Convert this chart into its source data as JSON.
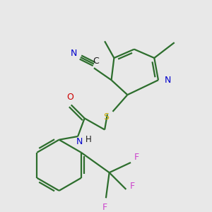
{
  "background_color": "#e8e8e8",
  "bond_color": "#2d6e2d",
  "bond_color_dark": "#1a1a1a",
  "atom_colors": {
    "N": "#0000cc",
    "O": "#cc0000",
    "S": "#ccaa00",
    "F": "#cc44cc",
    "C": "#1a1a1a",
    "H": "#1a1a1a"
  },
  "figsize": [
    3.0,
    3.0
  ],
  "dpi": 100
}
